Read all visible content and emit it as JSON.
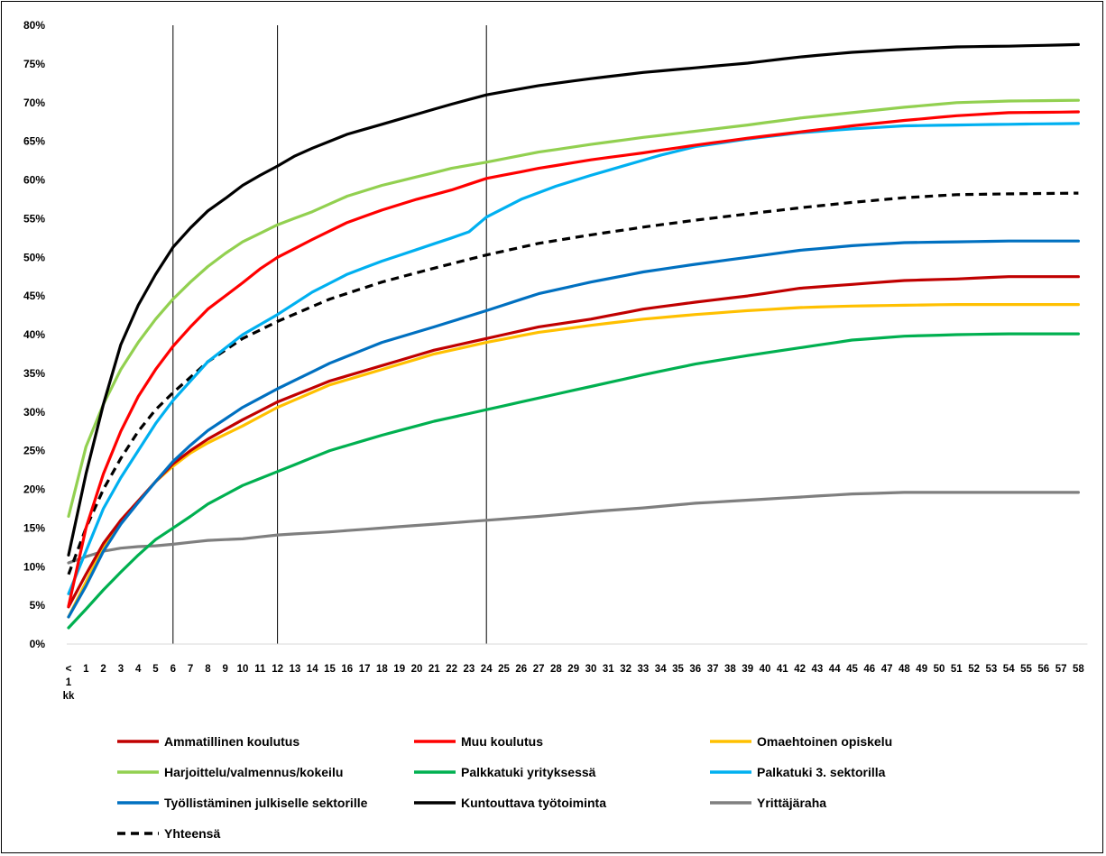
{
  "chart_data": {
    "type": "line",
    "title": "",
    "xlabel": "",
    "ylabel": "",
    "x_first_label_lines": [
      "<",
      "1",
      "kk"
    ],
    "x_months": [
      1,
      2,
      3,
      4,
      5,
      6,
      7,
      8,
      9,
      10,
      11,
      12,
      13,
      14,
      15,
      16,
      17,
      18,
      19,
      20,
      21,
      22,
      23,
      24,
      25,
      26,
      27,
      28,
      29,
      30,
      31,
      32,
      33,
      34,
      35,
      36,
      37,
      38,
      39,
      40,
      41,
      42,
      43,
      44,
      45,
      46,
      47,
      48,
      49,
      50,
      51,
      52,
      53,
      54,
      55,
      56,
      57,
      58
    ],
    "y_ticks": [
      "0%",
      "5%",
      "10%",
      "15%",
      "20%",
      "25%",
      "30%",
      "35%",
      "40%",
      "45%",
      "50%",
      "55%",
      "60%",
      "65%",
      "70%",
      "75%",
      "80%"
    ],
    "ylim": [
      0,
      80
    ],
    "reference_lines_at_month": [
      6,
      12,
      24
    ],
    "legend_position": "bottom",
    "series": [
      {
        "name": "Ammatillinen koulutus",
        "color": "#C00000",
        "style": "solid",
        "keypoints": [
          [
            0,
            4.8
          ],
          [
            1,
            9
          ],
          [
            2,
            13
          ],
          [
            3,
            16
          ],
          [
            4,
            18.5
          ],
          [
            5,
            21
          ],
          [
            6,
            23.3
          ],
          [
            7,
            25
          ],
          [
            8,
            26.5
          ],
          [
            10,
            29
          ],
          [
            12,
            31.3
          ],
          [
            15,
            34
          ],
          [
            18,
            36
          ],
          [
            21,
            38
          ],
          [
            24,
            39.5
          ],
          [
            27,
            41
          ],
          [
            30,
            42
          ],
          [
            33,
            43.3
          ],
          [
            36,
            44.2
          ],
          [
            39,
            45
          ],
          [
            42,
            46
          ],
          [
            45,
            46.5
          ],
          [
            48,
            47
          ],
          [
            51,
            47.2
          ],
          [
            54,
            47.5
          ],
          [
            58,
            47.5
          ]
        ]
      },
      {
        "name": "Muu koulutus",
        "color": "#FF0000",
        "style": "solid",
        "keypoints": [
          [
            0,
            4.9
          ],
          [
            1,
            15
          ],
          [
            2,
            22
          ],
          [
            3,
            27.5
          ],
          [
            4,
            32
          ],
          [
            5,
            35.5
          ],
          [
            6,
            38.5
          ],
          [
            7,
            41
          ],
          [
            8,
            43.3
          ],
          [
            9,
            45
          ],
          [
            10,
            46.7
          ],
          [
            11,
            48.5
          ],
          [
            12,
            50
          ],
          [
            14,
            52.3
          ],
          [
            16,
            54.5
          ],
          [
            18,
            56.1
          ],
          [
            20,
            57.5
          ],
          [
            22,
            58.7
          ],
          [
            24,
            60.2
          ],
          [
            27,
            61.5
          ],
          [
            30,
            62.6
          ],
          [
            33,
            63.5
          ],
          [
            36,
            64.5
          ],
          [
            39,
            65.4
          ],
          [
            42,
            66.2
          ],
          [
            45,
            67
          ],
          [
            48,
            67.7
          ],
          [
            51,
            68.3
          ],
          [
            54,
            68.7
          ],
          [
            58,
            68.8
          ]
        ]
      },
      {
        "name": "Omaehtoinen opiskelu",
        "color": "#FFC000",
        "style": "solid",
        "keypoints": [
          [
            0,
            3.5
          ],
          [
            1,
            8
          ],
          [
            2,
            12.5
          ],
          [
            3,
            16
          ],
          [
            4,
            18.5
          ],
          [
            5,
            21
          ],
          [
            6,
            23
          ],
          [
            7,
            24.7
          ],
          [
            8,
            26
          ],
          [
            10,
            28.2
          ],
          [
            12,
            30.6
          ],
          [
            15,
            33.5
          ],
          [
            18,
            35.5
          ],
          [
            21,
            37.5
          ],
          [
            24,
            39
          ],
          [
            27,
            40.3
          ],
          [
            30,
            41.2
          ],
          [
            33,
            42
          ],
          [
            36,
            42.6
          ],
          [
            39,
            43.1
          ],
          [
            42,
            43.5
          ],
          [
            45,
            43.7
          ],
          [
            48,
            43.8
          ],
          [
            51,
            43.9
          ],
          [
            58,
            43.9
          ]
        ]
      },
      {
        "name": "Harjoittelu/valmennus/kokeilu",
        "color": "#92D050",
        "style": "solid",
        "keypoints": [
          [
            0,
            16.5
          ],
          [
            1,
            25.5
          ],
          [
            2,
            31
          ],
          [
            3,
            35.5
          ],
          [
            4,
            39
          ],
          [
            5,
            42
          ],
          [
            6,
            44.6
          ],
          [
            7,
            46.8
          ],
          [
            8,
            48.8
          ],
          [
            9,
            50.5
          ],
          [
            10,
            52
          ],
          [
            12,
            54.2
          ],
          [
            14,
            55.9
          ],
          [
            16,
            57.9
          ],
          [
            18,
            59.3
          ],
          [
            20,
            60.4
          ],
          [
            22,
            61.5
          ],
          [
            24,
            62.3
          ],
          [
            27,
            63.6
          ],
          [
            30,
            64.6
          ],
          [
            33,
            65.5
          ],
          [
            36,
            66.3
          ],
          [
            39,
            67.1
          ],
          [
            42,
            68
          ],
          [
            45,
            68.7
          ],
          [
            48,
            69.4
          ],
          [
            51,
            70
          ],
          [
            54,
            70.2
          ],
          [
            58,
            70.3
          ]
        ]
      },
      {
        "name": "Palkkatuki yrityksessä",
        "color": "#00B050",
        "style": "solid",
        "keypoints": [
          [
            0,
            2.1
          ],
          [
            1,
            4.5
          ],
          [
            2,
            7
          ],
          [
            3,
            9.3
          ],
          [
            4,
            11.5
          ],
          [
            5,
            13.5
          ],
          [
            6,
            15
          ],
          [
            7,
            16.5
          ],
          [
            8,
            18.1
          ],
          [
            10,
            20.5
          ],
          [
            12,
            22.3
          ],
          [
            15,
            25
          ],
          [
            18,
            27
          ],
          [
            21,
            28.8
          ],
          [
            24,
            30.3
          ],
          [
            27,
            31.8
          ],
          [
            30,
            33.3
          ],
          [
            33,
            34.8
          ],
          [
            36,
            36.2
          ],
          [
            39,
            37.3
          ],
          [
            42,
            38.3
          ],
          [
            45,
            39.3
          ],
          [
            48,
            39.8
          ],
          [
            51,
            40
          ],
          [
            54,
            40.1
          ],
          [
            58,
            40.1
          ]
        ]
      },
      {
        "name": "Palkatuki 3. sektorilla",
        "color": "#00B0F0",
        "style": "solid",
        "keypoints": [
          [
            0,
            6.5
          ],
          [
            1,
            12
          ],
          [
            2,
            17.5
          ],
          [
            3,
            21.5
          ],
          [
            4,
            25
          ],
          [
            5,
            28.5
          ],
          [
            6,
            31.5
          ],
          [
            7,
            34
          ],
          [
            8,
            36.5
          ],
          [
            10,
            40
          ],
          [
            12,
            42.6
          ],
          [
            14,
            45.5
          ],
          [
            16,
            47.8
          ],
          [
            18,
            49.5
          ],
          [
            20,
            51
          ],
          [
            22,
            52.5
          ],
          [
            23,
            53.3
          ],
          [
            24,
            55.2
          ],
          [
            26,
            57.5
          ],
          [
            28,
            59.2
          ],
          [
            30,
            60.6
          ],
          [
            32,
            61.9
          ],
          [
            34,
            63.2
          ],
          [
            36,
            64.3
          ],
          [
            39,
            65.3
          ],
          [
            42,
            66.1
          ],
          [
            45,
            66.6
          ],
          [
            48,
            67
          ],
          [
            51,
            67.1
          ],
          [
            54,
            67.2
          ],
          [
            58,
            67.3
          ]
        ]
      },
      {
        "name": "Työllistäminen julkiselle sektorille",
        "color": "#0070C0",
        "style": "solid",
        "keypoints": [
          [
            0,
            3.5
          ],
          [
            1,
            7.5
          ],
          [
            2,
            12
          ],
          [
            3,
            15.5
          ],
          [
            4,
            18.3
          ],
          [
            5,
            21
          ],
          [
            6,
            23.6
          ],
          [
            7,
            25.7
          ],
          [
            8,
            27.6
          ],
          [
            10,
            30.6
          ],
          [
            12,
            33
          ],
          [
            15,
            36.3
          ],
          [
            18,
            39
          ],
          [
            21,
            41
          ],
          [
            24,
            43.1
          ],
          [
            27,
            45.3
          ],
          [
            30,
            46.8
          ],
          [
            33,
            48.1
          ],
          [
            36,
            49.1
          ],
          [
            39,
            50
          ],
          [
            42,
            50.9
          ],
          [
            45,
            51.5
          ],
          [
            48,
            51.9
          ],
          [
            51,
            52
          ],
          [
            54,
            52.1
          ],
          [
            58,
            52.1
          ]
        ]
      },
      {
        "name": "Kuntouttava työtoiminta",
        "color": "#000000",
        "style": "solid",
        "keypoints": [
          [
            0,
            11.5
          ],
          [
            1,
            22
          ],
          [
            2,
            31
          ],
          [
            3,
            38.7
          ],
          [
            4,
            43.8
          ],
          [
            5,
            47.8
          ],
          [
            6,
            51.3
          ],
          [
            7,
            53.8
          ],
          [
            8,
            56
          ],
          [
            9,
            57.6
          ],
          [
            10,
            59.3
          ],
          [
            11,
            60.6
          ],
          [
            12,
            61.8
          ],
          [
            13,
            63.1
          ],
          [
            14,
            64.1
          ],
          [
            16,
            65.9
          ],
          [
            18,
            67.2
          ],
          [
            20,
            68.5
          ],
          [
            22,
            69.8
          ],
          [
            24,
            71
          ],
          [
            27,
            72.2
          ],
          [
            30,
            73.1
          ],
          [
            33,
            73.9
          ],
          [
            36,
            74.5
          ],
          [
            39,
            75.1
          ],
          [
            42,
            75.9
          ],
          [
            45,
            76.5
          ],
          [
            48,
            76.9
          ],
          [
            51,
            77.2
          ],
          [
            54,
            77.3
          ],
          [
            58,
            77.5
          ]
        ]
      },
      {
        "name": "Yrittäjäraha",
        "color": "#7F7F7F",
        "style": "solid",
        "keypoints": [
          [
            0,
            10.5
          ],
          [
            1,
            11.3
          ],
          [
            2,
            12
          ],
          [
            3,
            12.4
          ],
          [
            4,
            12.6
          ],
          [
            5,
            12.7
          ],
          [
            6,
            12.9
          ],
          [
            8,
            13.4
          ],
          [
            10,
            13.6
          ],
          [
            12,
            14.1
          ],
          [
            15,
            14.5
          ],
          [
            18,
            15
          ],
          [
            21,
            15.5
          ],
          [
            24,
            16
          ],
          [
            27,
            16.5
          ],
          [
            30,
            17.1
          ],
          [
            33,
            17.6
          ],
          [
            36,
            18.2
          ],
          [
            39,
            18.6
          ],
          [
            42,
            19
          ],
          [
            45,
            19.4
          ],
          [
            48,
            19.6
          ],
          [
            51,
            19.6
          ],
          [
            58,
            19.6
          ]
        ]
      },
      {
        "name": "Yhteensä",
        "color": "#000000",
        "style": "dashed",
        "keypoints": [
          [
            0,
            9
          ],
          [
            1,
            15
          ],
          [
            2,
            20
          ],
          [
            3,
            24
          ],
          [
            4,
            27.5
          ],
          [
            5,
            30.3
          ],
          [
            6,
            32.5
          ],
          [
            7,
            34.5
          ],
          [
            8,
            36.5
          ],
          [
            10,
            39.5
          ],
          [
            12,
            41.7
          ],
          [
            15,
            44.6
          ],
          [
            18,
            46.8
          ],
          [
            21,
            48.6
          ],
          [
            24,
            50.3
          ],
          [
            27,
            51.8
          ],
          [
            30,
            52.9
          ],
          [
            33,
            53.9
          ],
          [
            36,
            54.8
          ],
          [
            39,
            55.6
          ],
          [
            42,
            56.4
          ],
          [
            45,
            57.1
          ],
          [
            48,
            57.7
          ],
          [
            51,
            58.1
          ],
          [
            54,
            58.2
          ],
          [
            58,
            58.3
          ]
        ]
      }
    ]
  }
}
